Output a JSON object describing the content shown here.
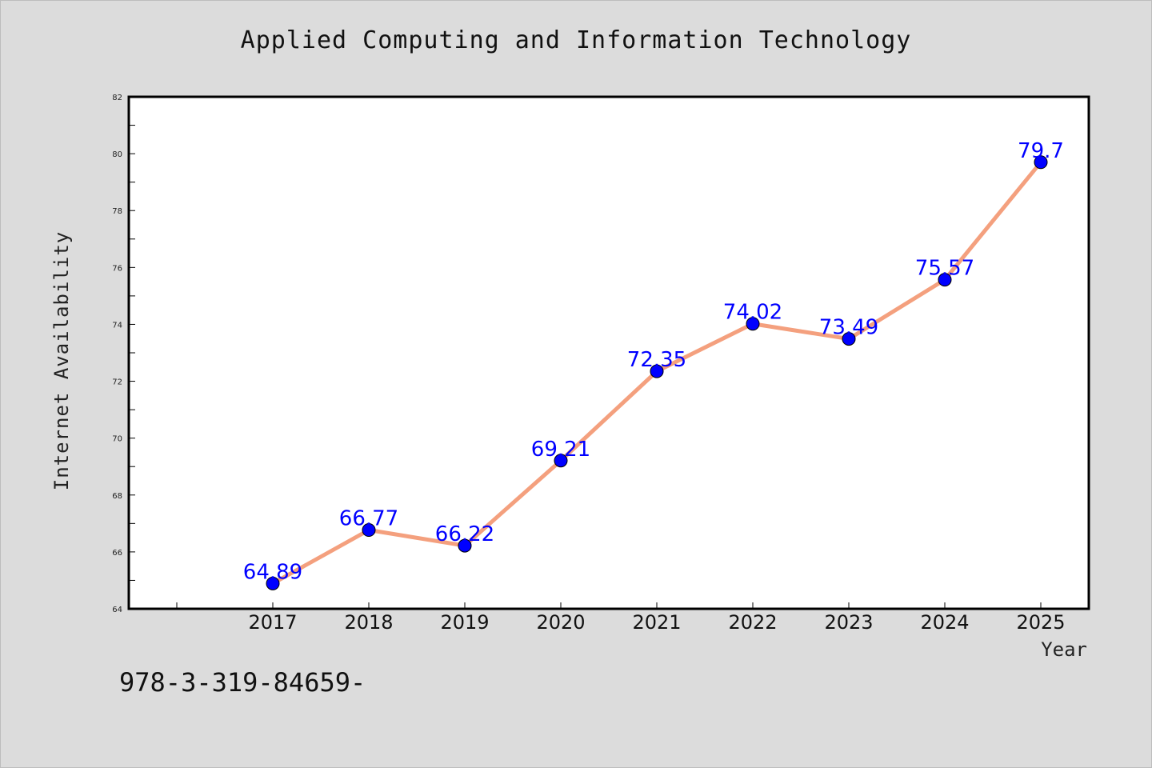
{
  "chart_data": {
    "type": "line",
    "title": "Applied Computing and Information Technology",
    "xlabel": "Year",
    "ylabel": "Internet Availability",
    "categories": [
      "2017",
      "2018",
      "2019",
      "2020",
      "2021",
      "2022",
      "2023",
      "2024",
      "2025"
    ],
    "series": [
      {
        "values": [
          64.89,
          66.77,
          66.22,
          69.21,
          72.35,
          74.02,
          73.49,
          75.57,
          79.7
        ],
        "labels": [
          "64.89",
          "66.77",
          "66.22",
          "69.21",
          "72.35",
          "74.02",
          "73.49",
          "75.57",
          "79.7"
        ],
        "line_color": "#f4a07e",
        "marker_color": "#0000ff"
      }
    ],
    "ylim": [
      64,
      82
    ],
    "yticks": [
      64,
      66,
      68,
      70,
      72,
      74,
      76,
      78,
      80,
      82
    ],
    "grid": false
  },
  "footer_text": "978-3-319-84659-"
}
